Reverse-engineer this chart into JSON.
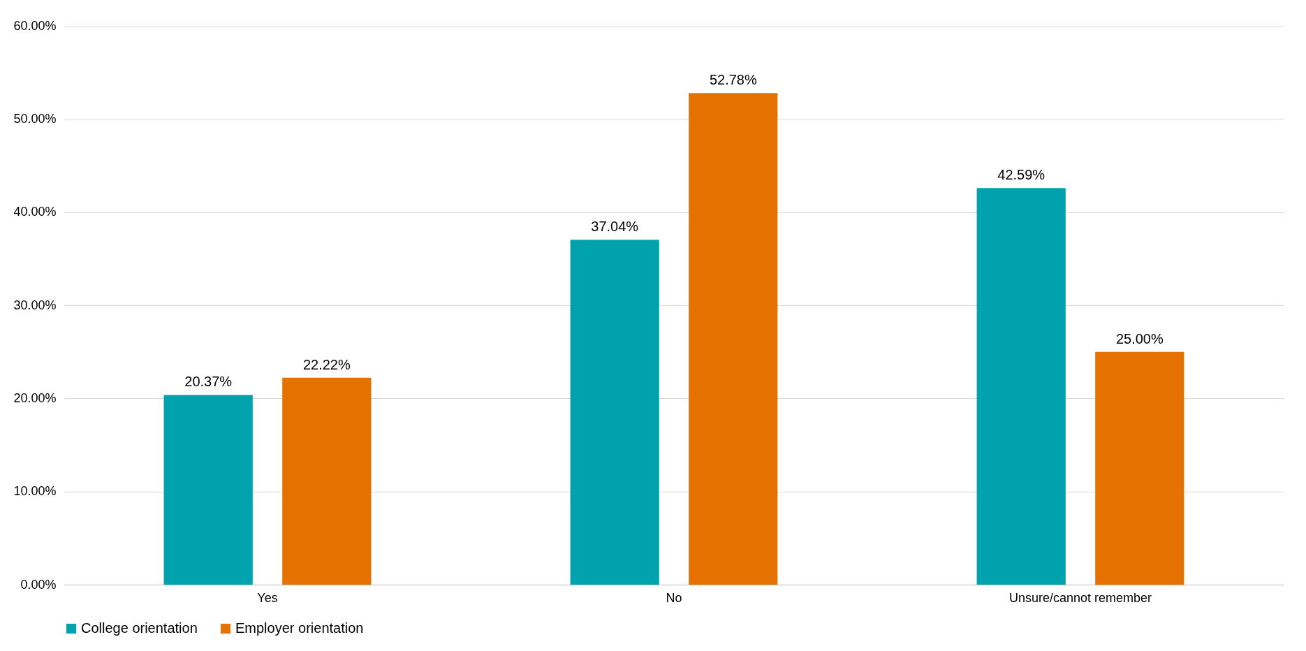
{
  "chart_data": {
    "type": "bar",
    "categories": [
      "Yes",
      "No",
      "Unsure/cannot remember"
    ],
    "series": [
      {
        "name": "College orientation",
        "color": "#00a3ad",
        "values": [
          20.37,
          37.04,
          42.59
        ],
        "value_labels": [
          "20.37%",
          "37.04%",
          "42.59%"
        ]
      },
      {
        "name": "Employer orientation",
        "color": "#e57200",
        "values": [
          22.22,
          52.78,
          25.0
        ],
        "value_labels": [
          "22.22%",
          "52.78%",
          "25.00%"
        ]
      }
    ],
    "ylim": [
      0,
      60
    ],
    "yticks": [
      {
        "value": 0,
        "label": "0.00%"
      },
      {
        "value": 10,
        "label": "10.00%"
      },
      {
        "value": 20,
        "label": "20.00%"
      },
      {
        "value": 30,
        "label": "30.00%"
      },
      {
        "value": 40,
        "label": "40.00%"
      },
      {
        "value": 50,
        "label": "50.00%"
      },
      {
        "value": 60,
        "label": "60.00%"
      }
    ],
    "grid": "y",
    "legend": "bottom"
  }
}
